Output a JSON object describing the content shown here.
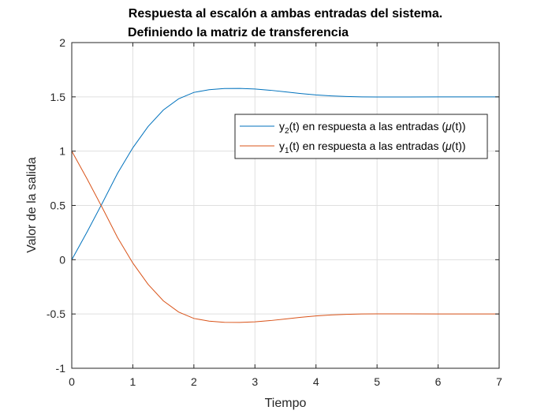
{
  "chart_data": {
    "type": "line",
    "title_lines": [
      "Respuesta al escalón a ambas entradas del sistema.",
      "Definiendo la matriz de transferencia"
    ],
    "xlabel": "Tiempo",
    "ylabel": "Valor de la salida",
    "xlim": [
      0,
      7
    ],
    "ylim": [
      -1,
      2
    ],
    "xticks": [
      0,
      1,
      2,
      3,
      4,
      5,
      6,
      7
    ],
    "xtick_labels": [
      "0",
      "1",
      "2",
      "3",
      "4",
      "5",
      "6",
      "7"
    ],
    "yticks": [
      -1,
      -0.5,
      0,
      0.5,
      1,
      1.5,
      2
    ],
    "ytick_labels": [
      "-1",
      "-0.5",
      "0",
      "0.5",
      "1",
      "1.5",
      "2"
    ],
    "grid": true,
    "legend_position": "right",
    "series": [
      {
        "name": "y2(t) en respuesta a las entradas (μ(t))",
        "legend_parts": {
          "base": "y",
          "sub": "2",
          "text": "(t) en respuesta a las entradas (",
          "greek": "μ",
          "tail": "(t))"
        },
        "color": "#0072BD",
        "x": [
          0,
          0.25,
          0.5,
          0.75,
          1,
          1.25,
          1.5,
          1.75,
          2,
          2.25,
          2.5,
          2.75,
          3,
          3.25,
          3.5,
          3.75,
          4,
          4.25,
          4.5,
          4.75,
          5,
          5.5,
          6,
          6.5,
          7
        ],
        "y": [
          0,
          0.255,
          0.521,
          0.796,
          1.031,
          1.227,
          1.379,
          1.482,
          1.541,
          1.566,
          1.577,
          1.578,
          1.572,
          1.561,
          1.546,
          1.531,
          1.518,
          1.509,
          1.503,
          1.5,
          1.499,
          1.499,
          1.5,
          1.5,
          1.5
        ]
      },
      {
        "name": "y1(t) en respuesta a las entradas (μ(t))",
        "legend_parts": {
          "base": "y",
          "sub": "1",
          "text": "(t) en respuesta a las entradas (",
          "greek": "μ",
          "tail": "(t))"
        },
        "color": "#D95319",
        "x": [
          0,
          0.25,
          0.5,
          0.75,
          1,
          1.25,
          1.5,
          1.75,
          2,
          2.25,
          2.5,
          2.75,
          3,
          3.25,
          3.5,
          3.75,
          4,
          4.25,
          4.5,
          4.75,
          5,
          5.5,
          6,
          6.5,
          7
        ],
        "y": [
          1,
          0.745,
          0.479,
          0.204,
          -0.031,
          -0.227,
          -0.379,
          -0.482,
          -0.541,
          -0.566,
          -0.577,
          -0.578,
          -0.572,
          -0.561,
          -0.546,
          -0.531,
          -0.518,
          -0.509,
          -0.503,
          -0.5,
          -0.499,
          -0.499,
          -0.5,
          -0.5,
          -0.5
        ]
      }
    ]
  }
}
